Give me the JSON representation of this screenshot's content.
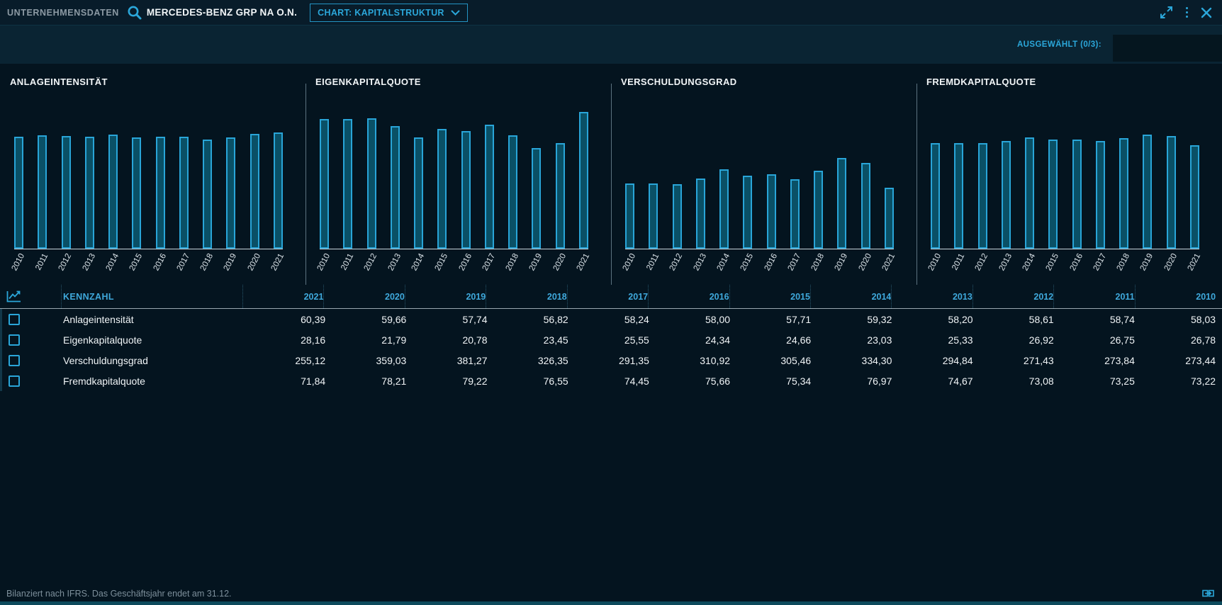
{
  "header": {
    "app_label": "UNTERNEHMENSDATEN",
    "company": "MERCEDES-BENZ GRP NA O.N.",
    "chart_select_label": "CHART: KAPITALSTRUKTUR"
  },
  "filter_bar": {
    "selected_label": "AUSGEWÄHLT (0/3):"
  },
  "colors": {
    "background": "#04141F",
    "band": "#0A2433",
    "accent": "#2BA7DA",
    "bar_fill": "#0A5066",
    "bar_border": "#29A5D8",
    "text": "#F0F4F6",
    "muted_text": "#7D8F9B"
  },
  "chart_data": [
    {
      "type": "bar",
      "title": "ANLAGEINTENSITÄT",
      "categories": [
        "2010",
        "2011",
        "2012",
        "2013",
        "2014",
        "2015",
        "2016",
        "2017",
        "2018",
        "2019",
        "2020",
        "2021"
      ],
      "values": [
        58.03,
        58.74,
        58.61,
        58.2,
        59.32,
        57.71,
        58.0,
        58.24,
        56.82,
        57.74,
        59.66,
        60.39
      ],
      "xlabel": "",
      "ylabel": "",
      "ylim": [
        0,
        78
      ],
      "grid": false,
      "legend": "none"
    },
    {
      "type": "bar",
      "title": "EIGENKAPITALQUOTE",
      "categories": [
        "2010",
        "2011",
        "2012",
        "2013",
        "2014",
        "2015",
        "2016",
        "2017",
        "2018",
        "2019",
        "2020",
        "2021"
      ],
      "values": [
        26.78,
        26.75,
        26.92,
        25.33,
        23.03,
        24.66,
        24.34,
        25.55,
        23.45,
        20.78,
        21.79,
        28.16
      ],
      "xlabel": "",
      "ylabel": "",
      "ylim": [
        0,
        31
      ],
      "grid": false,
      "legend": "none"
    },
    {
      "type": "bar",
      "title": "VERSCHULDUNGSGRAD",
      "categories": [
        "2010",
        "2011",
        "2012",
        "2013",
        "2014",
        "2015",
        "2016",
        "2017",
        "2018",
        "2019",
        "2020",
        "2021"
      ],
      "values": [
        273.44,
        273.84,
        271.43,
        294.84,
        334.3,
        305.46,
        310.92,
        291.35,
        326.35,
        381.27,
        359.03,
        255.12
      ],
      "xlabel": "",
      "ylabel": "",
      "ylim": [
        0,
        630
      ],
      "grid": false,
      "legend": "none"
    },
    {
      "type": "bar",
      "title": "FREMDKAPITALQUOTE",
      "categories": [
        "2010",
        "2011",
        "2012",
        "2013",
        "2014",
        "2015",
        "2016",
        "2017",
        "2018",
        "2019",
        "2020",
        "2021"
      ],
      "values": [
        73.22,
        73.25,
        73.08,
        74.67,
        76.97,
        75.34,
        75.66,
        74.45,
        76.55,
        79.22,
        78.21,
        71.84
      ],
      "xlabel": "",
      "ylabel": "",
      "ylim": [
        0,
        104
      ],
      "grid": false,
      "legend": "none"
    }
  ],
  "table": {
    "kennzahl_header": "KENNZAHL",
    "year_columns": [
      "2021",
      "2020",
      "2019",
      "2018",
      "2017",
      "2016",
      "2015",
      "2014",
      "2013",
      "2012",
      "2011",
      "2010"
    ],
    "rows": [
      {
        "label": "Anlageintensität",
        "values": [
          "60,39",
          "59,66",
          "57,74",
          "56,82",
          "58,24",
          "58,00",
          "57,71",
          "59,32",
          "58,20",
          "58,61",
          "58,74",
          "58,03"
        ]
      },
      {
        "label": "Eigenkapitalquote",
        "values": [
          "28,16",
          "21,79",
          "20,78",
          "23,45",
          "25,55",
          "24,34",
          "24,66",
          "23,03",
          "25,33",
          "26,92",
          "26,75",
          "26,78"
        ]
      },
      {
        "label": "Verschuldungsgrad",
        "values": [
          "255,12",
          "359,03",
          "381,27",
          "326,35",
          "291,35",
          "310,92",
          "305,46",
          "334,30",
          "294,84",
          "271,43",
          "273,84",
          "273,44"
        ]
      },
      {
        "label": "Fremdkapitalquote",
        "values": [
          "71,84",
          "78,21",
          "79,22",
          "76,55",
          "74,45",
          "75,66",
          "75,34",
          "76,97",
          "74,67",
          "73,08",
          "73,25",
          "73,22"
        ]
      }
    ]
  },
  "footer": {
    "note": "Bilanziert nach IFRS. Das Geschäftsjahr endet am 31.12."
  }
}
